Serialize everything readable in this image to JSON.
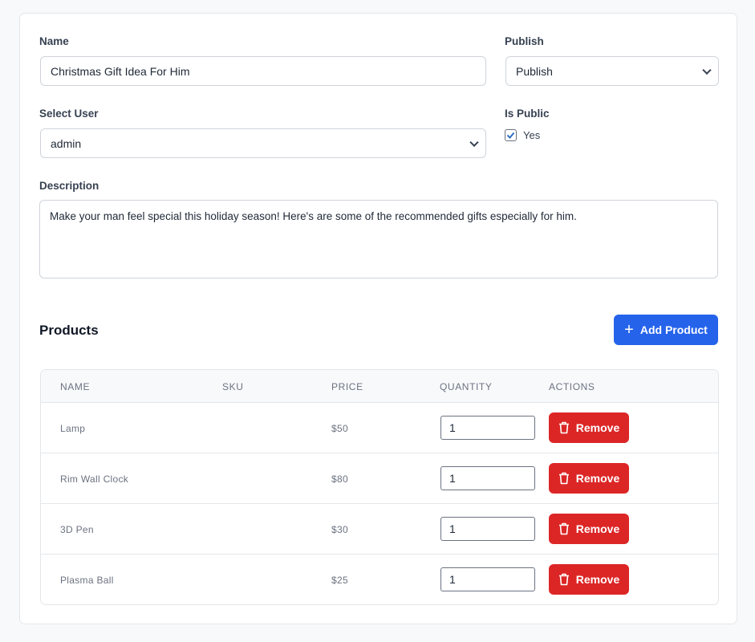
{
  "form": {
    "name_label": "Name",
    "name_value": "Christmas Gift Idea For Him",
    "publish_label": "Publish",
    "publish_value": "Publish",
    "user_label": "Select User",
    "user_value": "admin",
    "public_label": "Is Public",
    "public_option": "Yes",
    "public_checked": true,
    "description_label": "Description",
    "description_value": "Make your man feel special this holiday season! Here's are some of the recommended gifts especially for him."
  },
  "products": {
    "title": "Products",
    "add_label": "Add Product",
    "add_color": "#2563eb",
    "remove_color": "#dc2626",
    "columns": [
      "NAME",
      "SKU",
      "PRICE",
      "QUANTITY",
      "ACTIONS"
    ],
    "rows": [
      {
        "name": "Lamp",
        "sku": "",
        "price": "$50",
        "quantity": "1",
        "action": "Remove"
      },
      {
        "name": "Rim Wall Clock",
        "sku": "",
        "price": "$80",
        "quantity": "1",
        "action": "Remove"
      },
      {
        "name": "3D Pen",
        "sku": "",
        "price": "$30",
        "quantity": "1",
        "action": "Remove"
      },
      {
        "name": "Plasma Ball",
        "sku": "",
        "price": "$25",
        "quantity": "1",
        "action": "Remove"
      }
    ]
  }
}
